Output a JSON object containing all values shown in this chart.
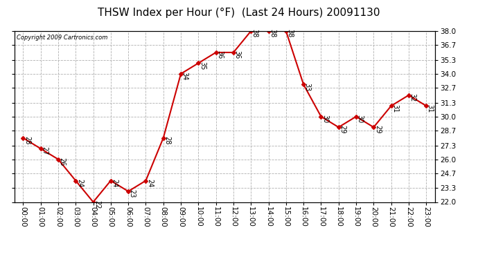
{
  "title": "THSW Index per Hour (°F)  (Last 24 Hours) 20091130",
  "copyright_text": "Copyright 2009 Cartronics.com",
  "hours": [
    "00:00",
    "01:00",
    "02:00",
    "03:00",
    "04:00",
    "05:00",
    "06:00",
    "07:00",
    "08:00",
    "09:00",
    "10:00",
    "11:00",
    "12:00",
    "13:00",
    "14:00",
    "15:00",
    "16:00",
    "17:00",
    "18:00",
    "19:00",
    "20:00",
    "21:00",
    "22:00",
    "23:00"
  ],
  "values": [
    28,
    27,
    26,
    24,
    22,
    24,
    23,
    24,
    28,
    34,
    35,
    36,
    36,
    38,
    38,
    38,
    33,
    30,
    29,
    30,
    29,
    31,
    32,
    31
  ],
  "ylim_min": 22.0,
  "ylim_max": 38.0,
  "yticks": [
    22.0,
    23.3,
    24.7,
    26.0,
    27.3,
    28.7,
    30.0,
    31.3,
    32.7,
    34.0,
    35.3,
    36.7,
    38.0
  ],
  "line_color": "#cc0000",
  "marker_color": "#cc0000",
  "bg_color": "#ffffff",
  "grid_color": "#b0b0b0",
  "title_fontsize": 11,
  "label_fontsize": 7.5,
  "annot_fontsize": 7
}
